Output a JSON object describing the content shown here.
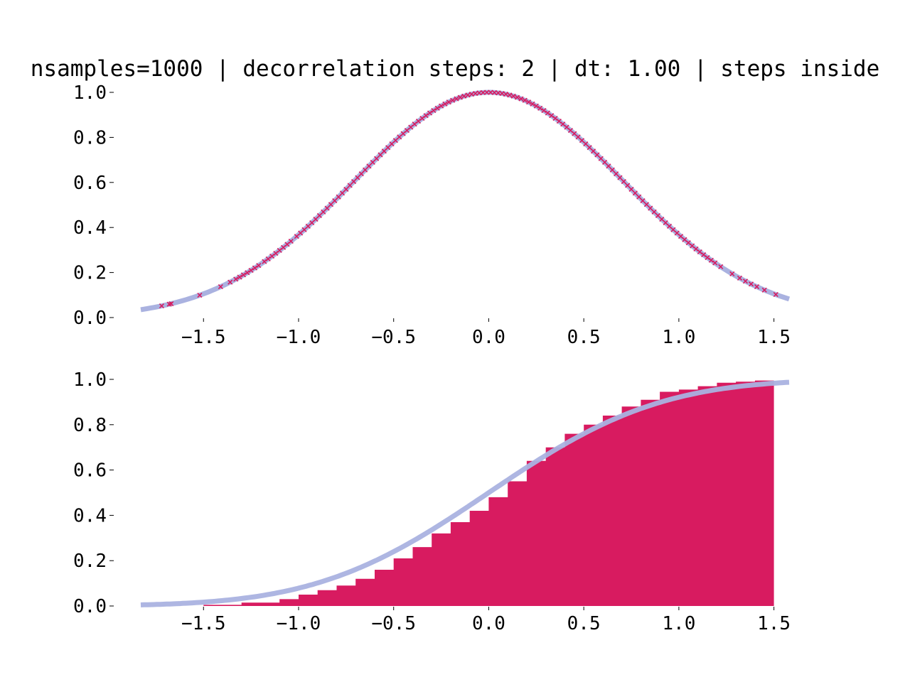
{
  "title": "nsamples=1000 | decorrelation steps: 2 | dt: 1.00 | steps inside",
  "colors": {
    "curve": "#aab2e0",
    "marker": "#d81b60",
    "histogram": "#d81b60"
  },
  "chart_data": [
    {
      "type": "scatter",
      "curve": "gaussian exp(-x^2)",
      "xlim": [
        -1.83,
        1.58
      ],
      "ylim": [
        0.0,
        1.0
      ],
      "xticks": [
        "−1.5",
        "−1.0",
        "−0.5",
        "0.0",
        "0.5",
        "1.0",
        "1.5"
      ],
      "yticks": [
        "0.0",
        "0.2",
        "0.4",
        "0.6",
        "0.8",
        "1.0"
      ],
      "samples_x": [
        -1.72,
        -1.68,
        -1.67,
        -1.52,
        -1.41,
        -1.36,
        -1.33,
        -1.31,
        -1.29,
        -1.27,
        -1.25,
        -1.23,
        -1.21,
        -1.18,
        -1.16,
        -1.14,
        -1.12,
        -1.1,
        -1.08,
        -1.06,
        -1.04,
        -1.01,
        -0.99,
        -0.97,
        -0.95,
        -0.93,
        -0.91,
        -0.89,
        -0.87,
        -0.85,
        -0.83,
        -0.81,
        -0.79,
        -0.77,
        -0.75,
        -0.73,
        -0.71,
        -0.69,
        -0.67,
        -0.65,
        -0.63,
        -0.61,
        -0.59,
        -0.57,
        -0.55,
        -0.53,
        -0.51,
        -0.49,
        -0.47,
        -0.45,
        -0.43,
        -0.41,
        -0.39,
        -0.37,
        -0.35,
        -0.33,
        -0.31,
        -0.29,
        -0.27,
        -0.25,
        -0.23,
        -0.21,
        -0.19,
        -0.17,
        -0.15,
        -0.13,
        -0.11,
        -0.09,
        -0.07,
        -0.05,
        -0.03,
        -0.01,
        0.01,
        0.03,
        0.05,
        0.07,
        0.09,
        0.11,
        0.13,
        0.15,
        0.17,
        0.19,
        0.21,
        0.23,
        0.25,
        0.27,
        0.29,
        0.31,
        0.33,
        0.35,
        0.37,
        0.39,
        0.41,
        0.43,
        0.45,
        0.47,
        0.49,
        0.51,
        0.53,
        0.55,
        0.57,
        0.59,
        0.61,
        0.63,
        0.65,
        0.67,
        0.69,
        0.71,
        0.73,
        0.75,
        0.77,
        0.79,
        0.81,
        0.83,
        0.85,
        0.87,
        0.89,
        0.91,
        0.93,
        0.95,
        0.97,
        0.99,
        1.01,
        1.03,
        1.05,
        1.07,
        1.09,
        1.11,
        1.13,
        1.15,
        1.17,
        1.19,
        1.22,
        1.28,
        1.32,
        1.35,
        1.38,
        1.41,
        1.45,
        1.51
      ]
    },
    {
      "type": "area",
      "curve": "cumulative distribution",
      "xlim": [
        -1.83,
        1.58
      ],
      "ylim": [
        0.0,
        1.0
      ],
      "xticks": [
        "−1.5",
        "−1.0",
        "−0.5",
        "0.0",
        "0.5",
        "1.0",
        "1.5"
      ],
      "yticks": [
        "0.0",
        "0.2",
        "0.4",
        "0.6",
        "0.8",
        "1.0"
      ],
      "hist_x": [
        -1.7,
        -1.5,
        -1.3,
        -1.1,
        -1.0,
        -0.9,
        -0.8,
        -0.7,
        -0.6,
        -0.5,
        -0.4,
        -0.3,
        -0.2,
        -0.1,
        0.0,
        0.1,
        0.2,
        0.3,
        0.4,
        0.5,
        0.6,
        0.7,
        0.8,
        0.9,
        1.0,
        1.1,
        1.2,
        1.3,
        1.4,
        1.5
      ],
      "hist_y": [
        0.0,
        0.005,
        0.015,
        0.03,
        0.05,
        0.07,
        0.09,
        0.12,
        0.16,
        0.21,
        0.26,
        0.32,
        0.37,
        0.42,
        0.48,
        0.55,
        0.64,
        0.7,
        0.76,
        0.8,
        0.84,
        0.88,
        0.91,
        0.945,
        0.955,
        0.97,
        0.985,
        0.99,
        0.995,
        1.0
      ]
    }
  ]
}
